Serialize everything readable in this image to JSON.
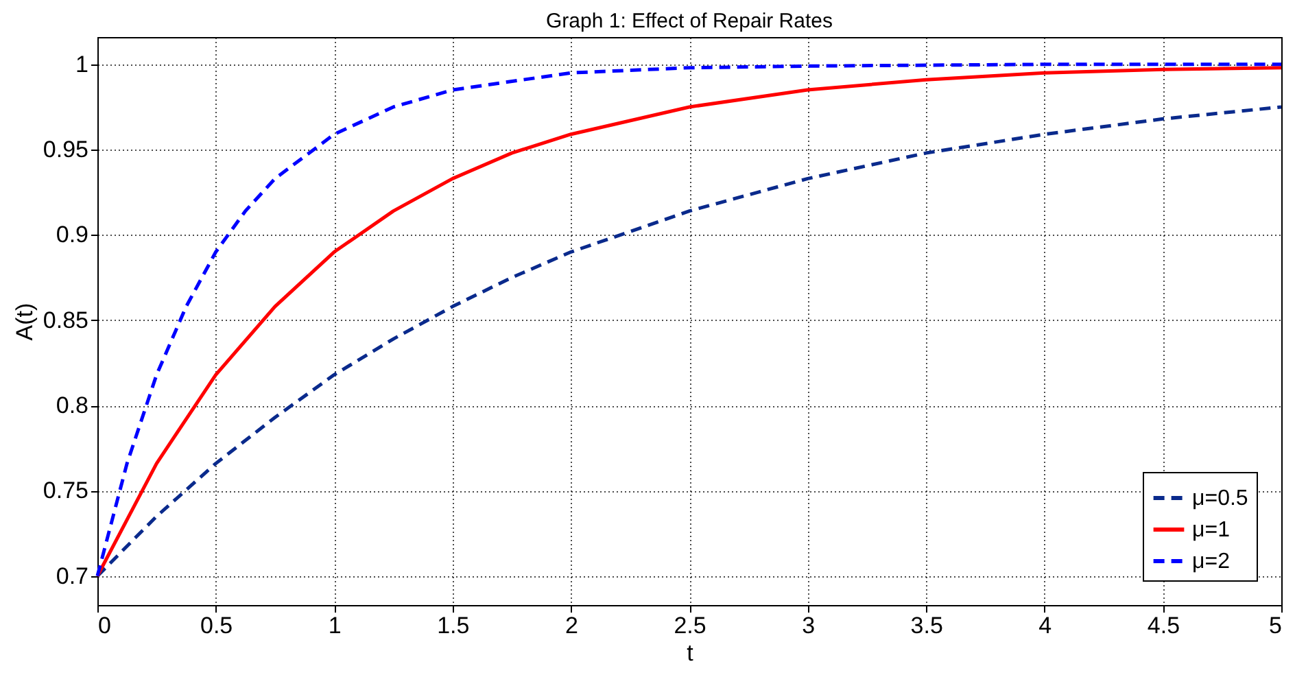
{
  "chart_data": {
    "type": "line",
    "title": "Graph 1: Effect of Repair Rates",
    "xlabel": "t",
    "ylabel": "A(t)",
    "xlim": [
      0,
      5
    ],
    "xticks": [
      0,
      0.5,
      1,
      1.5,
      2,
      2.5,
      3,
      3.5,
      4,
      4.5,
      5
    ],
    "ylim": [
      0.683,
      1.016
    ],
    "yticks": [
      0.7,
      0.75,
      0.8,
      0.85,
      0.9,
      0.95,
      1
    ],
    "grid": true,
    "legend": "bottom right",
    "marker": "none",
    "series": [
      {
        "name": "μ=0.5",
        "color": "#0a2a8c",
        "line_style": "dashed",
        "x": [
          0,
          0.25,
          0.5,
          0.75,
          1,
          1.25,
          1.5,
          1.75,
          2,
          2.5,
          3,
          3.5,
          4,
          4.5,
          5
        ],
        "values": [
          0.7,
          0.735,
          0.766,
          0.793,
          0.818,
          0.839,
          0.858,
          0.875,
          0.89,
          0.914,
          0.933,
          0.948,
          0.959,
          0.968,
          0.975
        ]
      },
      {
        "name": "μ=1",
        "color": "#ff0000",
        "line_style": "solid",
        "x": [
          0,
          0.25,
          0.5,
          0.75,
          1,
          1.25,
          1.5,
          1.75,
          2,
          2.5,
          3,
          3.5,
          4,
          4.5,
          5
        ],
        "values": [
          0.7,
          0.766,
          0.818,
          0.858,
          0.89,
          0.914,
          0.933,
          0.948,
          0.959,
          0.975,
          0.985,
          0.991,
          0.995,
          0.997,
          0.998
        ]
      },
      {
        "name": "μ=2",
        "color": "#0000ff",
        "line_style": "dashed",
        "x": [
          0,
          0.125,
          0.25,
          0.375,
          0.5,
          0.625,
          0.75,
          1,
          1.25,
          1.5,
          2,
          2.5,
          3,
          4,
          5
        ],
        "values": [
          0.7,
          0.766,
          0.818,
          0.858,
          0.89,
          0.914,
          0.933,
          0.959,
          0.975,
          0.985,
          0.995,
          0.998,
          0.999,
          1.0,
          1.0
        ]
      }
    ]
  }
}
